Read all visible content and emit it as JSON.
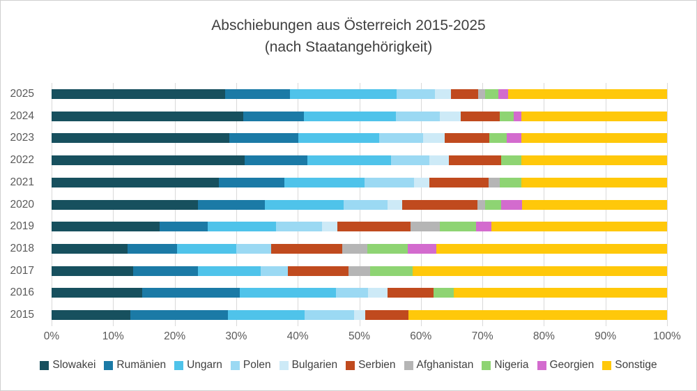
{
  "title": {
    "line1": "Abschiebungen aus Österreich 2015-2025",
    "line2": "(nach Staatangehörigkeit)"
  },
  "x_axis": {
    "ticks": [
      "0%",
      "10%",
      "20%",
      "30%",
      "40%",
      "50%",
      "60%",
      "70%",
      "80%",
      "90%",
      "100%"
    ]
  },
  "y_axis": {
    "labels": [
      "2025",
      "2024",
      "2023",
      "2022",
      "2021",
      "2020",
      "2019",
      "2018",
      "2017",
      "2016",
      "2015"
    ]
  },
  "colors": {
    "gridline": "#d9d9d9",
    "axis_text": "#595959",
    "title_text": "#3f3f3f"
  },
  "chart_data": {
    "type": "bar",
    "orientation": "horizontal",
    "stacked": true,
    "unit": "percent",
    "title": "Abschiebungen aus Österreich 2015-2025 (nach Staatangehörigkeit)",
    "xlabel": "",
    "ylabel": "",
    "xlim": [
      0,
      100
    ],
    "grid": true,
    "legend_position": "bottom",
    "categories": [
      "2025",
      "2024",
      "2023",
      "2022",
      "2021",
      "2020",
      "2019",
      "2018",
      "2017",
      "2016",
      "2015"
    ],
    "series": [
      {
        "name": "Slowakei",
        "color": "#17505E",
        "values": [
          28.2,
          31.1,
          28.9,
          31.4,
          27.2,
          23.8,
          17.6,
          12.3,
          13.2,
          14.7,
          12.8
        ]
      },
      {
        "name": "Rumänien",
        "color": "#1B7AA6",
        "values": [
          10.5,
          9.9,
          11.2,
          10.2,
          10.6,
          10.8,
          7.8,
          8.1,
          10.6,
          15.9,
          15.9
        ]
      },
      {
        "name": "Ungarn",
        "color": "#4FC3EA",
        "values": [
          17.4,
          14.9,
          13.1,
          13.5,
          13.1,
          12.9,
          11.1,
          9.6,
          10.2,
          15.6,
          12.4
        ]
      },
      {
        "name": "Polen",
        "color": "#9BD9F3",
        "values": [
          6.2,
          7.2,
          7.2,
          6.3,
          8.0,
          7.1,
          7.5,
          5.7,
          4.4,
          5.2,
          8.0
        ]
      },
      {
        "name": "Bulgarien",
        "color": "#CDEAF7",
        "values": [
          2.6,
          3.4,
          3.5,
          3.1,
          2.5,
          2.4,
          2.4,
          0.0,
          0.0,
          3.2,
          1.9
        ]
      },
      {
        "name": "Serbien",
        "color": "#C04A1E",
        "values": [
          4.4,
          6.3,
          7.2,
          8.6,
          9.6,
          12.2,
          11.9,
          11.5,
          9.8,
          7.5,
          7.0
        ]
      },
      {
        "name": "Afghanistan",
        "color": "#B5B5B5",
        "values": [
          1.2,
          0.0,
          0.0,
          0.0,
          1.8,
          1.2,
          4.8,
          4.1,
          3.6,
          0.0,
          0.0
        ]
      },
      {
        "name": "Nigeria",
        "color": "#8ED473",
        "values": [
          2.1,
          2.3,
          2.9,
          3.2,
          3.5,
          2.7,
          5.9,
          6.6,
          6.9,
          3.3,
          0.0
        ]
      },
      {
        "name": "Georgien",
        "color": "#D36BCE",
        "values": [
          1.6,
          1.2,
          2.3,
          0.0,
          0.0,
          3.3,
          2.5,
          4.6,
          0.0,
          0.0,
          0.0
        ]
      },
      {
        "name": "Sonstige",
        "color": "#FFC80A",
        "values": [
          25.8,
          23.7,
          23.7,
          23.7,
          23.7,
          23.6,
          28.5,
          37.5,
          41.3,
          34.6,
          42.0
        ]
      }
    ]
  }
}
